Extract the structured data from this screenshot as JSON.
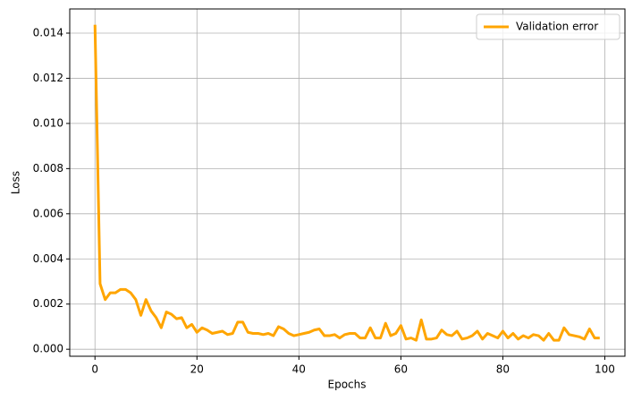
{
  "chart_data": {
    "type": "line",
    "xlabel": "Epochs",
    "ylabel": "Loss",
    "x": [
      0,
      1,
      2,
      3,
      4,
      5,
      6,
      7,
      8,
      9,
      10,
      11,
      12,
      13,
      14,
      15,
      16,
      17,
      18,
      19,
      20,
      21,
      22,
      23,
      24,
      25,
      26,
      27,
      28,
      29,
      30,
      31,
      32,
      33,
      34,
      35,
      36,
      37,
      38,
      39,
      40,
      41,
      42,
      43,
      44,
      45,
      46,
      47,
      48,
      49,
      50,
      51,
      52,
      53,
      54,
      55,
      56,
      57,
      58,
      59,
      60,
      61,
      62,
      63,
      64,
      65,
      66,
      67,
      68,
      69,
      70,
      71,
      72,
      73,
      74,
      75,
      76,
      77,
      78,
      79,
      80,
      81,
      82,
      83,
      84,
      85,
      86,
      87,
      88,
      89,
      90,
      91,
      92,
      93,
      94,
      95,
      96,
      97,
      98,
      99
    ],
    "series": [
      {
        "name": "Validation error",
        "color": "#ffa500",
        "values": [
          0.01437,
          0.0029,
          0.0022,
          0.0025,
          0.0025,
          0.00265,
          0.00265,
          0.0025,
          0.0022,
          0.0015,
          0.0022,
          0.0017,
          0.0014,
          0.00095,
          0.00165,
          0.00155,
          0.00135,
          0.0014,
          0.00095,
          0.0011,
          0.00075,
          0.00095,
          0.00085,
          0.0007,
          0.00075,
          0.0008,
          0.00065,
          0.0007,
          0.0012,
          0.0012,
          0.00075,
          0.0007,
          0.0007,
          0.00065,
          0.0007,
          0.0006,
          0.001,
          0.0009,
          0.0007,
          0.0006,
          0.00065,
          0.0007,
          0.00075,
          0.00085,
          0.0009,
          0.0006,
          0.0006,
          0.00065,
          0.0005,
          0.00065,
          0.0007,
          0.0007,
          0.0005,
          0.0005,
          0.00095,
          0.0005,
          0.0005,
          0.00115,
          0.0006,
          0.0007,
          0.00105,
          0.00045,
          0.0005,
          0.0004,
          0.0013,
          0.00045,
          0.00045,
          0.0005,
          0.00085,
          0.00065,
          0.0006,
          0.0008,
          0.00045,
          0.0005,
          0.0006,
          0.0008,
          0.00045,
          0.0007,
          0.0006,
          0.0005,
          0.0008,
          0.0005,
          0.0007,
          0.00045,
          0.0006,
          0.0005,
          0.00065,
          0.0006,
          0.0004,
          0.0007,
          0.0004,
          0.0004,
          0.00095,
          0.00065,
          0.0006,
          0.00055,
          0.00045,
          0.0009,
          0.0005,
          0.0005
        ]
      }
    ],
    "xlim": [
      -4.95,
      103.95
    ],
    "xticks": [
      0,
      20,
      40,
      60,
      80,
      100
    ],
    "ylim": [
      -0.00031,
      0.01507
    ],
    "yticks": [
      {
        "value": 0,
        "label": "0.000"
      },
      {
        "value": 0.002,
        "label": "0.002"
      },
      {
        "value": 0.004,
        "label": "0.004"
      },
      {
        "value": 0.006,
        "label": "0.006"
      },
      {
        "value": 0.008,
        "label": "0.008"
      },
      {
        "value": 0.01,
        "label": "0.010"
      },
      {
        "value": 0.012,
        "label": "0.012"
      },
      {
        "value": 0.014,
        "label": "0.014"
      }
    ],
    "grid": true,
    "legend": "upper right"
  }
}
